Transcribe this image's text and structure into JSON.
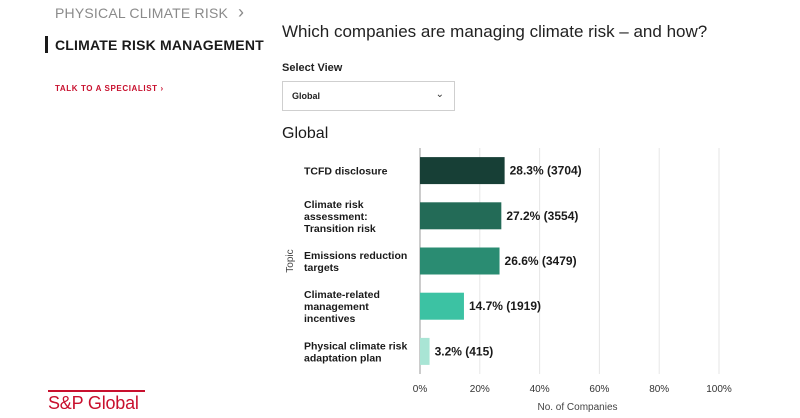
{
  "sidebar": {
    "items": [
      {
        "label": "PHYSICAL CLIMATE RISK"
      },
      {
        "label": "CLIMATE RISK MANAGEMENT"
      }
    ],
    "cta_label": "TALK TO A SPECIALIST ›",
    "logo_text": "S&P Global"
  },
  "main": {
    "title": "Which companies are managing climate risk – and how?",
    "select_label": "Select View",
    "select_value": "Global",
    "section_title": "Global"
  },
  "colors": {
    "brand_red": "#c8102e",
    "bar_colors": [
      "#173f36",
      "#236b57",
      "#2a8c72",
      "#3cc2a3",
      "#a9e5d5"
    ]
  },
  "chart_data": {
    "type": "bar",
    "orientation": "horizontal",
    "ylabel": "Topic",
    "xlabel": "No. of Companies",
    "xlim": [
      0,
      100
    ],
    "x_ticks": [
      "0%",
      "20%",
      "40%",
      "60%",
      "80%",
      "100%"
    ],
    "categories": [
      [
        "TCFD disclosure"
      ],
      [
        "Climate risk",
        "assessment:",
        "Transition risk"
      ],
      [
        "Emissions reduction",
        "targets"
      ],
      [
        "Climate-related",
        "management",
        "incentives"
      ],
      [
        "Physical climate risk",
        "adaptation plan"
      ]
    ],
    "values": [
      28.3,
      27.2,
      26.6,
      14.7,
      3.2
    ],
    "counts": [
      3704,
      3554,
      3479,
      1919,
      415
    ],
    "data_labels": [
      "28.3% (3704)",
      "27.2% (3554)",
      "26.6% (3479)",
      "14.7% (1919)",
      "3.2% (415)"
    ],
    "grid": true
  }
}
